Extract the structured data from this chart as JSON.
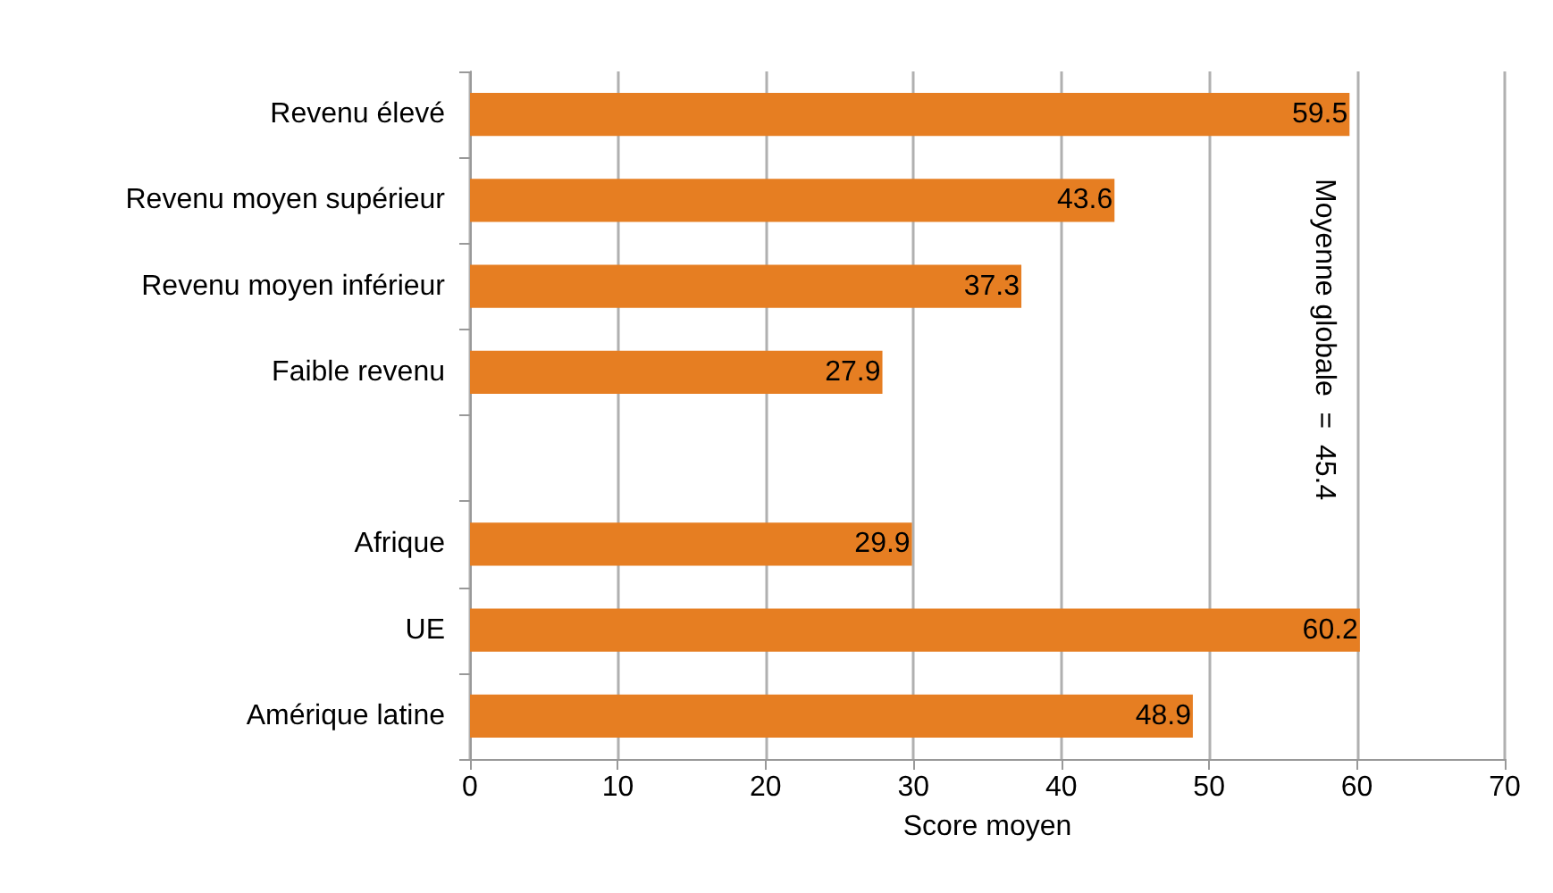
{
  "chart_data": {
    "type": "bar",
    "orientation": "horizontal",
    "categories": [
      "Revenu élevé",
      "Revenu moyen supérieur",
      "Revenu moyen inférieur",
      "Faible revenu",
      null,
      "Afrique",
      "UE",
      "Amérique latine"
    ],
    "values": [
      59.5,
      43.6,
      37.3,
      27.9,
      null,
      29.9,
      60.2,
      48.9
    ],
    "color": "#e67e22",
    "data_labels": true,
    "xlabel": "Score moyen",
    "xlim": [
      0,
      70
    ],
    "xticks": [
      0,
      10,
      20,
      30,
      40,
      50,
      60,
      70
    ],
    "grid": "x",
    "annotations": [
      "Moyenne globale  =  45.4"
    ]
  }
}
